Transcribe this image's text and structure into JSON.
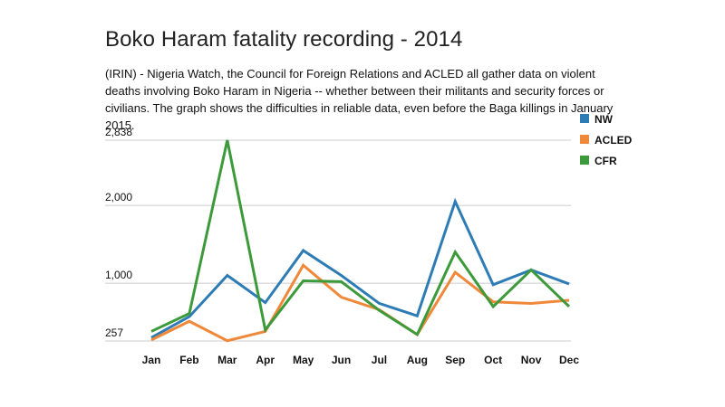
{
  "header": {
    "title": "Boko Haram fatality recording - 2014",
    "subtitle": "(IRIN) - Nigeria Watch, the Council for Foreign Relations and ACLED all gather data on violent deaths involving Boko Haram in Nigeria -- whether between their militants and security forces or civilians. The graph shows the difficulties in reliable data, even before the Baga killings in January 2015."
  },
  "chart_data": {
    "type": "line",
    "categories": [
      "Jan",
      "Feb",
      "Mar",
      "Apr",
      "May",
      "Jun",
      "Jul",
      "Aug",
      "Sep",
      "Oct",
      "Nov",
      "Dec"
    ],
    "yticks": [
      {
        "value": 257,
        "label": "257"
      },
      {
        "value": 1000,
        "label": "1,000"
      },
      {
        "value": 2000,
        "label": "2,000"
      },
      {
        "value": 2838,
        "label": "2,838"
      }
    ],
    "ylim": [
      257,
      2838
    ],
    "grid": true,
    "legend_position": "top-right",
    "series": [
      {
        "name": "NW",
        "color": "#2e7cb5",
        "values": [
          300,
          570,
          1100,
          750,
          1420,
          1100,
          740,
          580,
          2050,
          980,
          1170,
          990
        ]
      },
      {
        "name": "ACLED",
        "color": "#f0883a",
        "values": [
          270,
          510,
          260,
          380,
          1230,
          820,
          660,
          340,
          1140,
          760,
          740,
          780
        ]
      },
      {
        "name": "CFR",
        "color": "#3c9a3a",
        "values": [
          380,
          610,
          2838,
          400,
          1030,
          1020,
          650,
          340,
          1400,
          700,
          1170,
          700
        ]
      }
    ]
  }
}
